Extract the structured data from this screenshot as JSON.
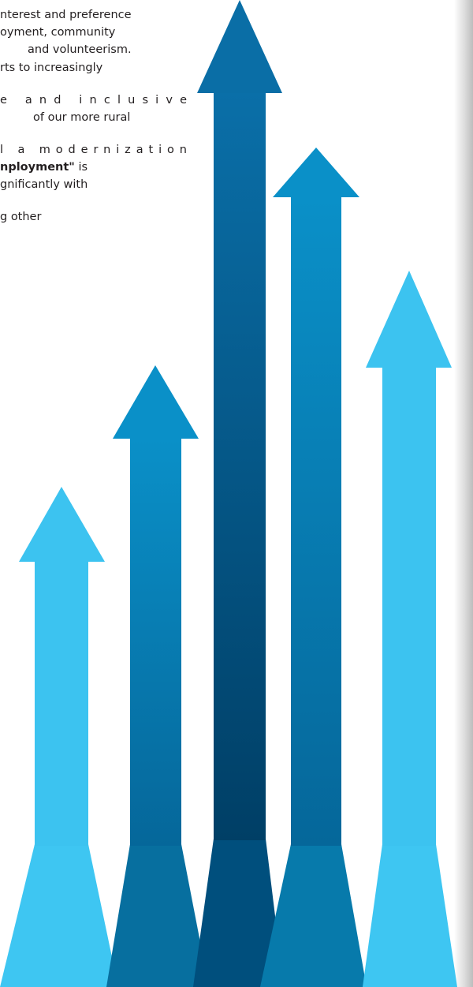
{
  "document": {
    "lines": [
      {
        "segments": [
          {
            "text": "nterest and preference"
          }
        ]
      },
      {
        "segments": [
          {
            "text": "oyment, community"
          }
        ]
      },
      {
        "segments": [
          {
            "text": "and volunteerism."
          }
        ]
      },
      {
        "segments": [
          {
            "text": "rts to increasingly"
          }
        ]
      },
      {
        "segments": [
          {
            "text": "e and inclusive"
          }
        ]
      },
      {
        "segments": [
          {
            "text": "of our more rural"
          }
        ]
      },
      {
        "segments": [
          {
            "text": "l a modernization"
          }
        ]
      },
      {
        "segments": [
          {
            "text": "nployment\"",
            "bold": true
          },
          {
            "text": " is"
          }
        ]
      },
      {
        "segments": [
          {
            "text": "gnificantly with"
          }
        ]
      },
      {
        "segments": [
          {
            "text": "g other"
          }
        ]
      }
    ]
  }
}
